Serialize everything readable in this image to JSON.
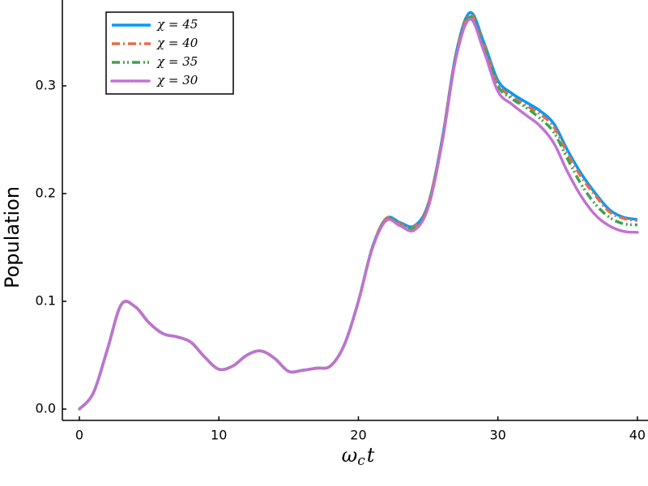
{
  "chart_data": {
    "type": "line",
    "xlabel": [
      "ω",
      "c",
      "t"
    ],
    "ylabel": "Population",
    "x": [
      0,
      1,
      2,
      3,
      4,
      5,
      6,
      7,
      8,
      9,
      10,
      11,
      12,
      13,
      14,
      15,
      16,
      17,
      18,
      19,
      20,
      21,
      22,
      23,
      24,
      25,
      26,
      27,
      28,
      29,
      30,
      31,
      32,
      33,
      34,
      35,
      36,
      37,
      38,
      39,
      40
    ],
    "series": [
      {
        "name": "χ = 45",
        "color": "#009af9",
        "dash": "solid",
        "values": [
          0,
          0.015,
          0.055,
          0.097,
          0.095,
          0.08,
          0.07,
          0.067,
          0.062,
          0.048,
          0.037,
          0.04,
          0.05,
          0.054,
          0.047,
          0.035,
          0.036,
          0.038,
          0.04,
          0.06,
          0.1,
          0.15,
          0.177,
          0.173,
          0.17,
          0.19,
          0.25,
          0.33,
          0.368,
          0.34,
          0.305,
          0.293,
          0.285,
          0.277,
          0.265,
          0.24,
          0.218,
          0.2,
          0.185,
          0.178,
          0.176
        ]
      },
      {
        "name": "χ = 40",
        "color": "#e26f46",
        "dash": "dashdot",
        "values": [
          0,
          0.015,
          0.055,
          0.097,
          0.095,
          0.08,
          0.07,
          0.067,
          0.062,
          0.048,
          0.037,
          0.04,
          0.05,
          0.054,
          0.047,
          0.035,
          0.036,
          0.038,
          0.04,
          0.06,
          0.1,
          0.15,
          0.177,
          0.172,
          0.169,
          0.19,
          0.25,
          0.329,
          0.366,
          0.338,
          0.302,
          0.29,
          0.282,
          0.274,
          0.262,
          0.237,
          0.215,
          0.198,
          0.183,
          0.177,
          0.175
        ]
      },
      {
        "name": "χ = 35",
        "color": "#3da44d",
        "dash": "dashdotdot",
        "values": [
          0,
          0.015,
          0.055,
          0.097,
          0.095,
          0.08,
          0.07,
          0.067,
          0.062,
          0.048,
          0.037,
          0.04,
          0.05,
          0.054,
          0.047,
          0.035,
          0.036,
          0.038,
          0.04,
          0.06,
          0.1,
          0.15,
          0.176,
          0.171,
          0.168,
          0.189,
          0.249,
          0.328,
          0.364,
          0.336,
          0.3,
          0.288,
          0.28,
          0.27,
          0.257,
          0.232,
          0.208,
          0.19,
          0.178,
          0.172,
          0.171
        ]
      },
      {
        "name": "χ = 30",
        "color": "#c271d2",
        "dash": "dot",
        "values": [
          0,
          0.015,
          0.055,
          0.097,
          0.095,
          0.08,
          0.07,
          0.067,
          0.062,
          0.048,
          0.037,
          0.04,
          0.05,
          0.054,
          0.047,
          0.035,
          0.036,
          0.038,
          0.04,
          0.06,
          0.1,
          0.149,
          0.175,
          0.17,
          0.166,
          0.187,
          0.247,
          0.326,
          0.362,
          0.332,
          0.295,
          0.283,
          0.273,
          0.263,
          0.247,
          0.22,
          0.197,
          0.18,
          0.17,
          0.165,
          0.164
        ]
      }
    ],
    "xlim": [
      -1.22,
      40.76
    ],
    "ylim": [
      -0.0105,
      0.3797
    ],
    "xticks": [
      0,
      10,
      20,
      30,
      40
    ],
    "yticks": [
      {
        "value": 0,
        "label": "0.0"
      },
      0.1,
      0.2,
      0.3
    ],
    "grid": false,
    "legend": "top-left"
  }
}
